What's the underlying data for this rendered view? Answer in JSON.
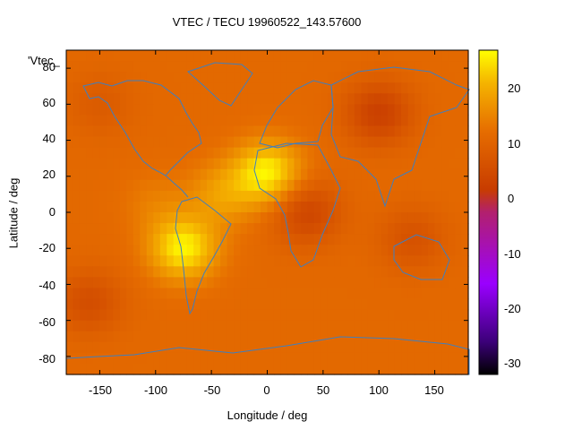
{
  "chart_data": {
    "type": "heatmap",
    "title": "VTEC / TECU 19960522_143.57600",
    "xlabel": "Longitude / deg",
    "ylabel": "Latitude / deg",
    "xlim": [
      -180,
      180
    ],
    "ylim": [
      -90,
      90
    ],
    "xticks": [
      -150,
      -100,
      -50,
      0,
      50,
      100,
      150
    ],
    "yticks": [
      80,
      60,
      40,
      20,
      0,
      -20,
      -40,
      -60,
      -80
    ],
    "colorbar": {
      "range": [
        -32,
        27
      ],
      "ticks": [
        20,
        10,
        0,
        -10,
        -20,
        -30
      ],
      "palette": "black-purple-red-orange-yellow"
    },
    "key_label": "'Vtec_",
    "overlay": "coastlines",
    "field_features": [
      {
        "lon": 0,
        "lat": 22,
        "value": 26
      },
      {
        "lon": -75,
        "lat": -20,
        "value": 26
      },
      {
        "lon": -40,
        "lat": 10,
        "value": 18
      },
      {
        "lon": -100,
        "lat": 5,
        "value": 14
      },
      {
        "lon": 100,
        "lat": 55,
        "value": 2
      },
      {
        "lon": 35,
        "lat": 0,
        "value": 3
      },
      {
        "lon": 130,
        "lat": -15,
        "value": 6
      },
      {
        "lon": -160,
        "lat": -50,
        "value": 5
      },
      {
        "lon": -150,
        "lat": 60,
        "value": 8
      }
    ],
    "field_base_value": 11
  }
}
